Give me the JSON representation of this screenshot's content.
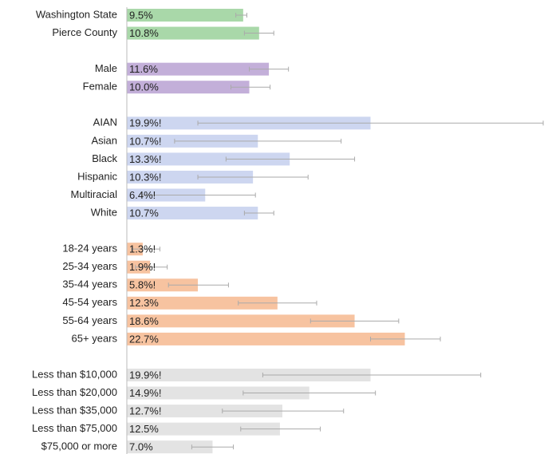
{
  "chart_data": {
    "type": "bar",
    "orientation": "horizontal",
    "groups": [
      {
        "color": "#a9d8a9",
        "categories": [
          "Washington State",
          "Pierce County"
        ],
        "values": [
          9.5,
          10.8
        ],
        "value_labels": [
          "9.5%",
          "10.8%"
        ],
        "lower": [
          8.9,
          9.6
        ],
        "upper": [
          9.8,
          12.0
        ]
      },
      {
        "color": "#c3afd9",
        "categories": [
          "Male",
          "Female"
        ],
        "values": [
          11.6,
          10.0
        ],
        "value_labels": [
          "11.6%",
          "10.0%"
        ],
        "lower": [
          10.0,
          8.5
        ],
        "upper": [
          13.2,
          11.7
        ]
      },
      {
        "color": "#cdd6f0",
        "categories": [
          "AIAN",
          "Asian",
          "Black",
          "Hispanic",
          "Multiracial",
          "White"
        ],
        "values": [
          19.9,
          10.7,
          13.3,
          10.3,
          6.4,
          10.7
        ],
        "value_labels": [
          "19.9%!",
          "10.7%!",
          "13.3%!",
          "10.3%!",
          "6.4%!",
          "10.7%"
        ],
        "lower": [
          5.8,
          3.9,
          8.1,
          5.8,
          1.2,
          9.6
        ],
        "upper": [
          34.0,
          17.5,
          18.6,
          14.8,
          10.5,
          12.0
        ]
      },
      {
        "color": "#f7c3a0",
        "categories": [
          "18-24 years",
          "25-34 years",
          "35-44 years",
          "45-54 years",
          "55-64 years",
          "65+ years"
        ],
        "values": [
          1.3,
          1.9,
          5.8,
          12.3,
          18.6,
          22.7
        ],
        "value_labels": [
          "1.3%!",
          "1.9%!",
          "5.8%!",
          "12.3%",
          "18.6%",
          "22.7%"
        ],
        "lower": [
          0.4,
          0.7,
          3.4,
          9.1,
          15.0,
          19.9
        ],
        "upper": [
          2.7,
          3.3,
          8.3,
          15.5,
          22.2,
          25.6
        ]
      },
      {
        "color": "#e3e3e3",
        "categories": [
          "Less than $10,000",
          "Less than $20,000",
          "Less than $35,000",
          "Less than $75,000",
          "$75,000 or more"
        ],
        "values": [
          19.9,
          14.9,
          12.7,
          12.5,
          7.0
        ],
        "value_labels": [
          "19.9%!",
          "14.9%!",
          "12.7%!",
          "12.5%",
          "7.0%"
        ],
        "lower": [
          11.1,
          9.5,
          7.8,
          9.3,
          5.3
        ],
        "upper": [
          28.9,
          20.3,
          17.7,
          15.8,
          8.7
        ]
      }
    ]
  }
}
